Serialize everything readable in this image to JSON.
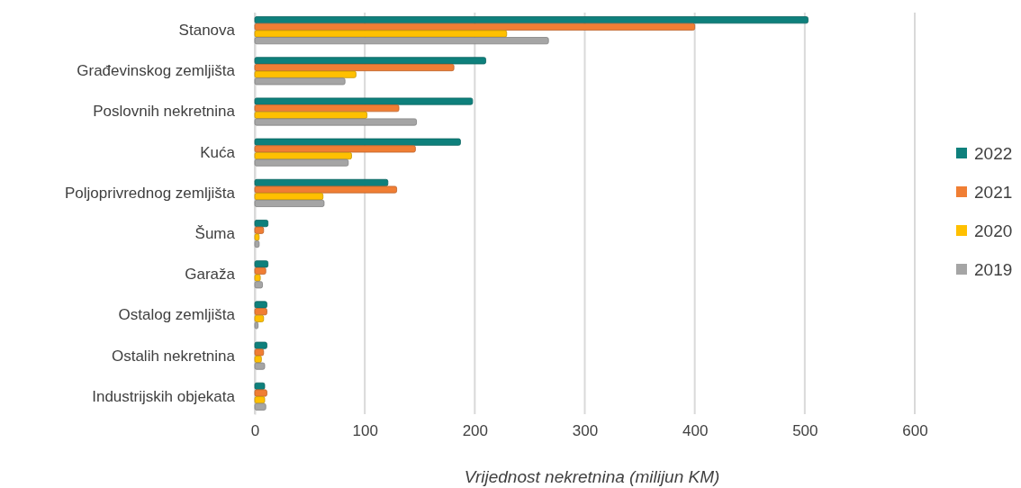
{
  "chart_data": {
    "type": "bar",
    "orientation": "horizontal",
    "xlabel": "Vrijednost nekretnina (milijun KM)",
    "categories": [
      "Stanova",
      "Građevinskog zemljišta",
      "Poslovnih nekretnina",
      "Kuća",
      "Poljoprivrednog zemljišta",
      "Šuma",
      "Garaža",
      "Ostalog zemljišta",
      "Ostalih nekretnina",
      "Industrijskih objekata"
    ],
    "series": [
      {
        "name": "2022",
        "color": "#0e807c",
        "values": [
          503,
          210,
          198,
          187,
          121,
          12,
          12,
          11,
          11,
          9
        ]
      },
      {
        "name": "2021",
        "color": "#f07e34",
        "values": [
          400,
          181,
          131,
          146,
          129,
          8,
          10,
          11,
          8,
          11
        ]
      },
      {
        "name": "2020",
        "color": "#ffc000",
        "values": [
          229,
          92,
          102,
          88,
          62,
          4,
          5,
          8,
          6,
          9
        ]
      },
      {
        "name": "2019",
        "color": "#a5a5a5",
        "values": [
          267,
          82,
          147,
          85,
          63,
          4,
          7,
          3,
          9,
          10
        ]
      }
    ],
    "xlim": [
      0,
      600
    ],
    "xticks": [
      0,
      100,
      200,
      300,
      400,
      500,
      600
    ],
    "grid": "x",
    "legend": "right"
  }
}
